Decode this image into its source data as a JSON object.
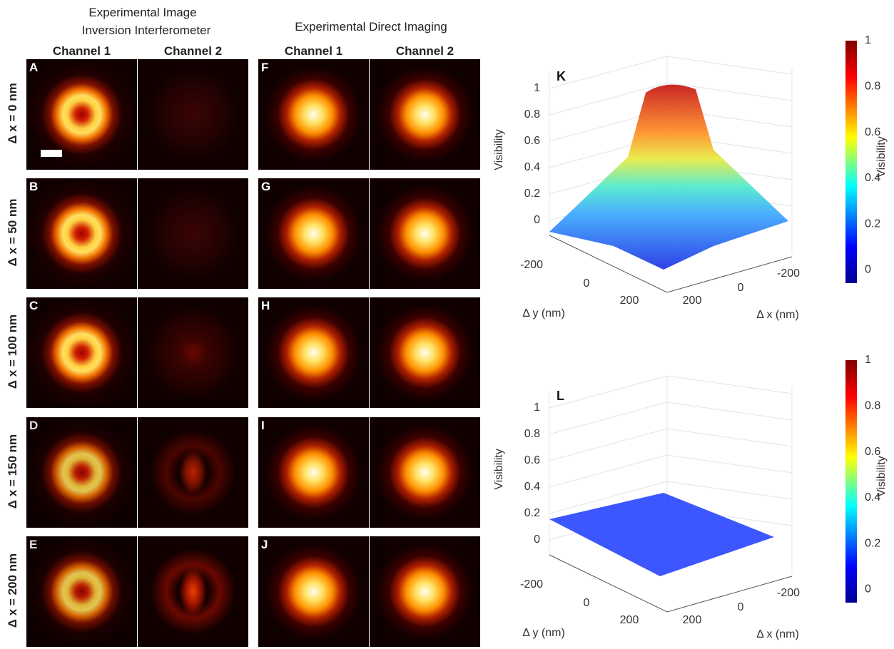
{
  "header": {
    "interferometer_title": [
      "Experimental Image",
      "Inversion Interferometer"
    ],
    "direct_title": "Experimental Direct Imaging"
  },
  "columns": [
    "Channel 1",
    "Channel 2",
    "Channel 1",
    "Channel 2"
  ],
  "rows": [
    {
      "label": "Δ x = 0 nm",
      "panels": [
        "A",
        "F"
      ]
    },
    {
      "label": "Δ x = 50 nm",
      "panels": [
        "B",
        "G"
      ]
    },
    {
      "label": "Δ x = 100 nm",
      "panels": [
        "C",
        "H"
      ]
    },
    {
      "label": "Δ x = 150 nm",
      "panels": [
        "D",
        "I"
      ]
    },
    {
      "label": "Δ x = 200 nm",
      "panels": [
        "E",
        "J"
      ]
    }
  ],
  "plots": [
    {
      "panel": "K",
      "z_label": "Visibility",
      "z_ticks": [
        "1",
        "0.8",
        "0.6",
        "0.4",
        "0.2",
        "0"
      ],
      "y_label": "Δ y (nm)",
      "y_ticks": [
        "-200",
        "0",
        "200"
      ],
      "x_label": "Δ x (nm)",
      "x_ticks": [
        "200",
        "0",
        "-200"
      ],
      "colorbar_label": "Visibility",
      "colorbar_ticks": [
        "1",
        "0.8",
        "0.6",
        "0.4",
        "0.2",
        "0"
      ]
    },
    {
      "panel": "L",
      "z_label": "Visibility",
      "z_ticks": [
        "1",
        "0.8",
        "0.6",
        "0.4",
        "0.2",
        "0"
      ],
      "y_label": "Δ y (nm)",
      "y_ticks": [
        "-200",
        "0",
        "200"
      ],
      "x_label": "Δ x (nm)",
      "x_ticks": [
        "200",
        "0",
        "-200"
      ],
      "colorbar_label": "Visibility",
      "colorbar_ticks": [
        "1",
        "0.8",
        "0.6",
        "0.4",
        "0.2",
        "0"
      ]
    }
  ]
}
